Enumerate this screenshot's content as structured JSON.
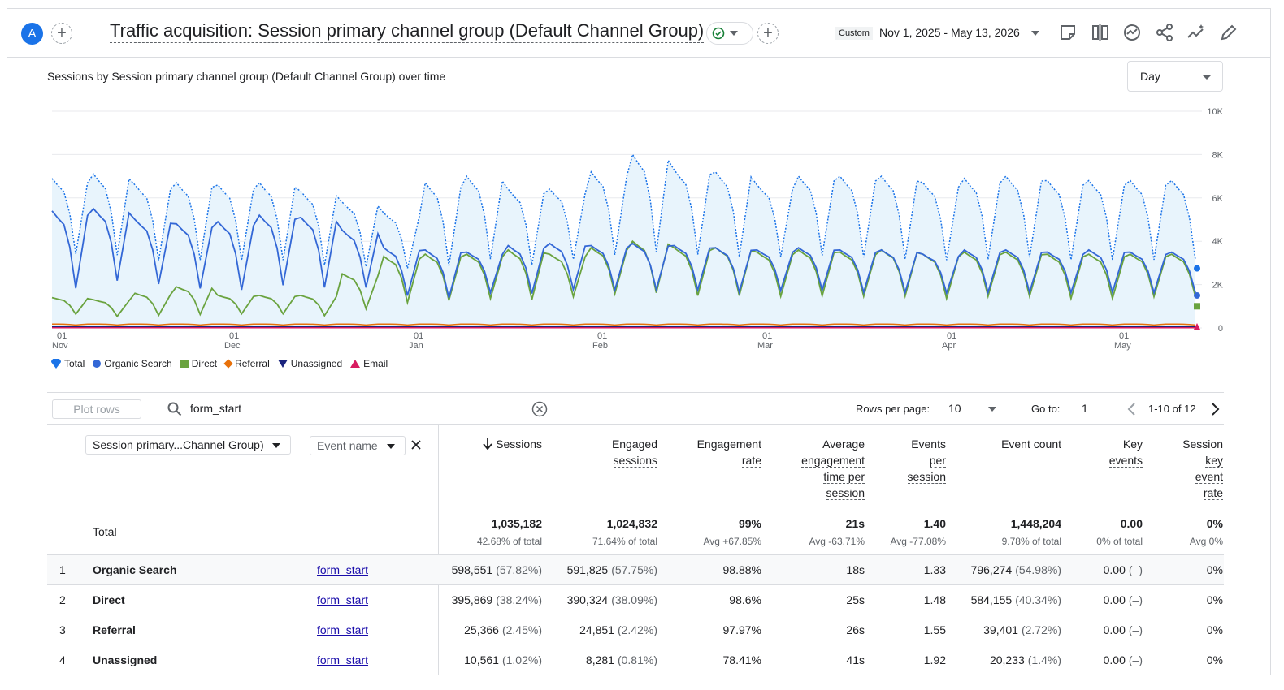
{
  "header": {
    "avatar_letter": "A",
    "title": "Traffic acquisition: Session primary channel group (Default Channel Group)",
    "custom_label": "Custom",
    "date_range": "Nov 1, 2025 - May 13, 2026"
  },
  "chart": {
    "title": "Sessions by Session primary channel group (Default Channel Group) over time",
    "granularity": "Day"
  },
  "chart_data": {
    "type": "line",
    "y_ticks": [
      "10K",
      "8K",
      "6K",
      "4K",
      "2K",
      "0"
    ],
    "ylim": [
      0,
      10000
    ],
    "x_ticks": [
      {
        "day": "01",
        "month": "Nov"
      },
      {
        "day": "01",
        "month": "Dec"
      },
      {
        "day": "01",
        "month": "Jan"
      },
      {
        "day": "01",
        "month": "Feb"
      },
      {
        "day": "01",
        "month": "Mar"
      },
      {
        "day": "01",
        "month": "Apr"
      },
      {
        "day": "01",
        "month": "May"
      }
    ],
    "legend": [
      "Total",
      "Organic Search",
      "Direct",
      "Referral",
      "Unassigned",
      "Email"
    ],
    "colors": {
      "Total": "#1a73e8",
      "Organic Search": "#3367d6",
      "Direct": "#6aa33f",
      "Referral": "#e8710a",
      "Unassigned": "#1a237e",
      "Email": "#d81b60",
      "area": "#e8f4fc"
    },
    "weekly_peaks": {
      "Total": [
        6900,
        7100,
        6600,
        6700,
        6600,
        6700,
        6300,
        5800,
        5300,
        6700,
        7000,
        6400,
        6400,
        7200,
        8000,
        7300,
        7200,
        6600,
        7000,
        7000,
        7000,
        6700,
        6900,
        7000,
        6800,
        6800,
        6800,
        6800,
        6800,
        6800,
        7000,
        7300
      ],
      "Organic Search": [
        5400,
        5500,
        5000,
        4800,
        4900,
        5200,
        5100,
        4500,
        3700,
        3600,
        3500,
        3800,
        3900,
        3800,
        3900,
        3800,
        3700,
        3600,
        3700,
        3600,
        3600,
        3400,
        3600,
        3600,
        3500,
        3600,
        3500,
        3500,
        3600,
        3600,
        3600,
        3600
      ],
      "Direct": [
        1400,
        1300,
        1600,
        1900,
        1500,
        1500,
        1500,
        2500,
        3300,
        3400,
        3400,
        3600,
        3400,
        3700,
        4000,
        3700,
        3700,
        3500,
        3600,
        3500,
        3600,
        3400,
        3500,
        3500,
        3400,
        3400,
        3400,
        3400,
        3500,
        3500,
        3500,
        3500
      ]
    },
    "weekly_troughs": {
      "Total": [
        2800,
        2700,
        2500,
        2500,
        2500,
        2500,
        2300,
        2300,
        2300,
        2200,
        2500,
        2300,
        2600,
        2700,
        2700,
        2700,
        2600,
        2700,
        2700,
        2600,
        2500,
        2500,
        2500,
        2600,
        2500,
        2500,
        2500,
        2500,
        2500,
        2500,
        2500,
        2500
      ],
      "Organic Search": [
        1200,
        1600,
        1500,
        1300,
        1200,
        1400,
        1300,
        1400,
        1100,
        1000,
        1300,
        1200,
        1400,
        1400,
        1400,
        1400,
        1300,
        1400,
        1400,
        1300,
        1300,
        1300,
        1300,
        1300,
        1300,
        1300,
        1300,
        1300,
        1300,
        1300,
        1300,
        1300
      ],
      "Direct": [
        500,
        400,
        400,
        400,
        500,
        500,
        400,
        600,
        800,
        900,
        1000,
        900,
        1100,
        1200,
        1200,
        1100,
        1100,
        1100,
        1100,
        1100,
        1100,
        1000,
        1100,
        1100,
        1000,
        1000,
        1100,
        1100,
        1100,
        1100,
        1100,
        1100
      ]
    },
    "flat_series": {
      "Referral": 180,
      "Unassigned": 60,
      "Email": 10
    }
  },
  "toolbar": {
    "plot_rows": "Plot rows",
    "search_value": "form_start",
    "rows_per_page_label": "Rows per page:",
    "rows_per_page": "10",
    "goto_label": "Go to:",
    "goto_value": "1",
    "page_range": "1-10 of 12"
  },
  "table": {
    "dim1": "Session primary...Channel Group)",
    "dim2": "Event name",
    "headers": {
      "sessions": "Sessions",
      "engaged": [
        "Engaged",
        "sessions"
      ],
      "engagement_rate": [
        "Engagement",
        "rate"
      ],
      "avg_time": [
        "Average",
        "engagement",
        "time per",
        "session"
      ],
      "events_per": [
        "Events",
        "per",
        "session"
      ],
      "event_count": "Event count",
      "key_events": [
        "Key",
        "events"
      ],
      "session_key": [
        "Session",
        "key",
        "event",
        "rate"
      ]
    },
    "total_label": "Total",
    "totals": {
      "sessions": "1,035,182",
      "sessions_sub": "42.68% of total",
      "engaged": "1,024,832",
      "engaged_sub": "71.64% of total",
      "rate": "99%",
      "rate_sub": "Avg +67.85%",
      "time": "21s",
      "time_sub": "Avg -63.71%",
      "eps": "1.40",
      "eps_sub": "Avg -77.08%",
      "count": "1,448,204",
      "count_sub": "9.78% of total",
      "key": "0.00",
      "key_sub": "0% of total",
      "skr": "0%",
      "skr_sub": "Avg 0%"
    },
    "rows": [
      {
        "n": "1",
        "channel": "Organic Search",
        "event": "form_start",
        "sessions": "598,551",
        "sessions_pct": "(57.82%)",
        "engaged": "591,825",
        "engaged_pct": "(57.75%)",
        "rate": "98.88%",
        "time": "18s",
        "eps": "1.33",
        "count": "796,274",
        "count_pct": "(54.98%)",
        "key": "0.00",
        "key_pct": "(–)",
        "skr": "0%"
      },
      {
        "n": "2",
        "channel": "Direct",
        "event": "form_start",
        "sessions": "395,869",
        "sessions_pct": "(38.24%)",
        "engaged": "390,324",
        "engaged_pct": "(38.09%)",
        "rate": "98.6%",
        "time": "25s",
        "eps": "1.48",
        "count": "584,155",
        "count_pct": "(40.34%)",
        "key": "0.00",
        "key_pct": "(–)",
        "skr": "0%"
      },
      {
        "n": "3",
        "channel": "Referral",
        "event": "form_start",
        "sessions": "25,366",
        "sessions_pct": "(2.45%)",
        "engaged": "24,851",
        "engaged_pct": "(2.42%)",
        "rate": "97.97%",
        "time": "26s",
        "eps": "1.55",
        "count": "39,401",
        "count_pct": "(2.72%)",
        "key": "0.00",
        "key_pct": "(–)",
        "skr": "0%"
      },
      {
        "n": "4",
        "channel": "Unassigned",
        "event": "form_start",
        "sessions": "10,561",
        "sessions_pct": "(1.02%)",
        "engaged": "8,281",
        "engaged_pct": "(0.81%)",
        "rate": "78.41%",
        "time": "41s",
        "eps": "1.92",
        "count": "20,233",
        "count_pct": "(1.4%)",
        "key": "0.00",
        "key_pct": "(–)",
        "skr": "0%"
      }
    ]
  }
}
